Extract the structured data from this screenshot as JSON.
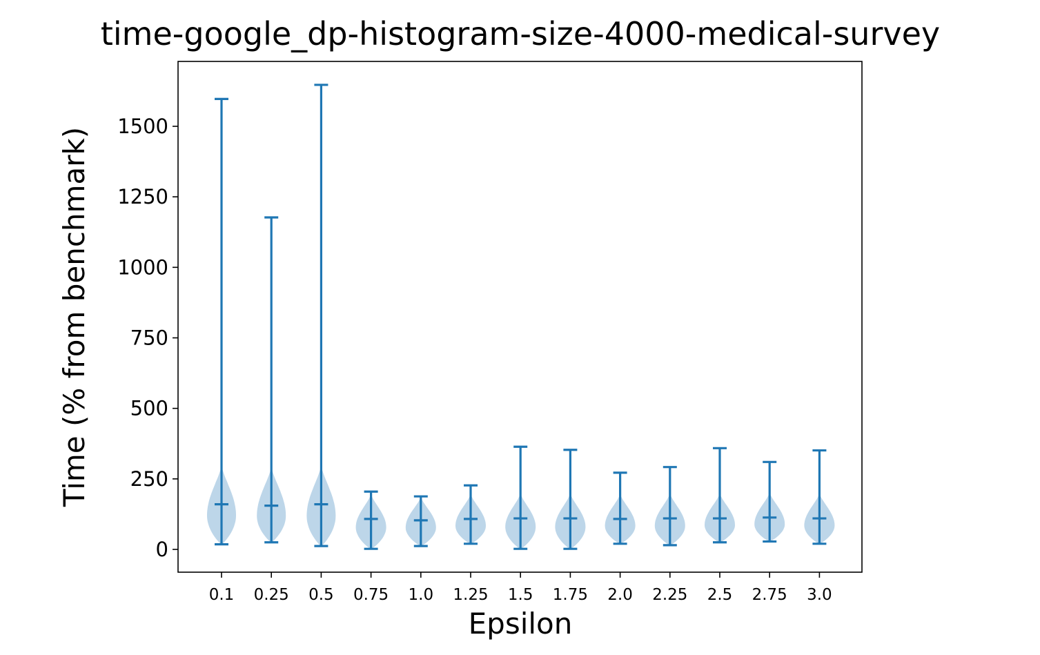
{
  "chart_data": {
    "type": "violin",
    "title": "time-google_dp-histogram-size-4000-medical-survey",
    "xlabel": "Epsilon",
    "ylabel": "Time (% from benchmark)",
    "ylim": [
      -80,
      1720
    ],
    "yticks": [
      0,
      250,
      500,
      750,
      1000,
      1250,
      1500
    ],
    "grid": false,
    "legend": "none",
    "color": "#1f77b4",
    "body_color": "#b9d4e8",
    "categories": [
      "0.1",
      "0.25",
      "0.5",
      "0.75",
      "1.0",
      "1.25",
      "1.5",
      "1.75",
      "2.0",
      "2.25",
      "2.5",
      "2.75",
      "3.0"
    ],
    "series": [
      {
        "min": 18,
        "median": 160,
        "max": 1597
      },
      {
        "min": 25,
        "median": 155,
        "max": 1177
      },
      {
        "min": 12,
        "median": 160,
        "max": 1647
      },
      {
        "min": 2,
        "median": 108,
        "max": 205
      },
      {
        "min": 12,
        "median": 103,
        "max": 188
      },
      {
        "min": 20,
        "median": 108,
        "max": 227
      },
      {
        "min": 2,
        "median": 110,
        "max": 364
      },
      {
        "min": 2,
        "median": 110,
        "max": 353
      },
      {
        "min": 20,
        "median": 108,
        "max": 272
      },
      {
        "min": 15,
        "median": 110,
        "max": 292
      },
      {
        "min": 25,
        "median": 110,
        "max": 359
      },
      {
        "min": 28,
        "median": 113,
        "max": 310
      },
      {
        "min": 20,
        "median": 110,
        "max": 351
      }
    ]
  }
}
